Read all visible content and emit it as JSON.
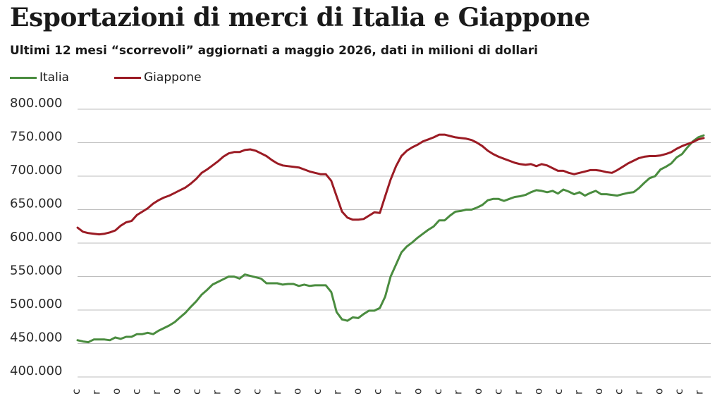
{
  "chart_data": {
    "type": "line",
    "title": "Esportazioni di merci di Italia e Giappone",
    "subtitle": "Ultimi 12 mesi “scorrevoli” aggiornati a maggio 2026, dati in milioni di dollari",
    "xlabel": "",
    "ylabel": "",
    "ylim": [
      400000,
      800000
    ],
    "yticks": [
      800000,
      750000,
      700000,
      650000,
      600000,
      550000,
      500000,
      450000,
      400000
    ],
    "ytick_labels": [
      "800.000",
      "750.000",
      "700.000",
      "650.000",
      "600.000",
      "550.000",
      "500.000",
      "450.000",
      "400.000"
    ],
    "grid": true,
    "legend_position": "top-left",
    "xtick_labels": [
      "c",
      "r",
      "o",
      "c",
      "r",
      "o",
      "c",
      "r",
      "o",
      "c",
      "r",
      "o",
      "c",
      "r",
      "o",
      "c",
      "r",
      "o",
      "c",
      "r",
      "o",
      "c",
      "r",
      "o",
      "c",
      "r",
      "o",
      "c",
      "r",
      "o",
      "c",
      "r"
    ],
    "series": [
      {
        "name": "Italia",
        "color": "#4a8c3f",
        "values": [
          455000,
          453000,
          452000,
          456000,
          456000,
          456000,
          455000,
          459000,
          457000,
          460000,
          460000,
          464000,
          464000,
          466000,
          464000,
          469000,
          473000,
          477000,
          482000,
          489000,
          496000,
          505000,
          513000,
          523000,
          530000,
          538000,
          542000,
          546000,
          550000,
          550000,
          547000,
          553000,
          551000,
          549000,
          547000,
          540000,
          540000,
          540000,
          538000,
          539000,
          539000,
          536000,
          538000,
          536000,
          537000,
          537000,
          537000,
          527000,
          497000,
          486000,
          484000,
          489000,
          488000,
          494000,
          499000,
          499000,
          503000,
          520000,
          550000,
          568000,
          586000,
          595000,
          601000,
          608000,
          614000,
          620000,
          625000,
          634000,
          634000,
          641000,
          647000,
          648000,
          650000,
          650000,
          653000,
          657000,
          664000,
          666000,
          666000,
          663000,
          666000,
          669000,
          670000,
          672000,
          676000,
          679000,
          678000,
          676000,
          678000,
          674000,
          680000,
          677000,
          673000,
          676000,
          671000,
          675000,
          678000,
          673000,
          673000,
          672000,
          671000,
          673000,
          675000,
          676000,
          682000,
          690000,
          697000,
          700000,
          710000,
          714000,
          719000,
          728000,
          733000,
          743000,
          752000,
          758000,
          761000
        ]
      },
      {
        "name": "Giappone",
        "color": "#9b1b24",
        "values": [
          623000,
          617000,
          615000,
          614000,
          613000,
          614000,
          616000,
          619000,
          626000,
          631000,
          633000,
          642000,
          647000,
          652000,
          659000,
          664000,
          668000,
          671000,
          675000,
          679000,
          683000,
          689000,
          696000,
          705000,
          710000,
          716000,
          722000,
          729000,
          734000,
          736000,
          736000,
          739000,
          740000,
          738000,
          734000,
          730000,
          724000,
          719000,
          716000,
          715000,
          714000,
          713000,
          710000,
          707000,
          705000,
          703000,
          703000,
          693000,
          670000,
          647000,
          638000,
          635000,
          635000,
          636000,
          641000,
          646000,
          645000,
          670000,
          695000,
          715000,
          730000,
          738000,
          743000,
          747000,
          752000,
          755000,
          758000,
          762000,
          762000,
          760000,
          758000,
          757000,
          756000,
          754000,
          750000,
          745000,
          738000,
          733000,
          729000,
          726000,
          723000,
          720000,
          718000,
          717000,
          718000,
          715000,
          718000,
          716000,
          712000,
          708000,
          708000,
          705000,
          703000,
          705000,
          707000,
          709000,
          709000,
          708000,
          706000,
          705000,
          709000,
          714000,
          719000,
          723000,
          727000,
          729000,
          730000,
          730000,
          731000,
          733000,
          736000,
          741000,
          745000,
          748000,
          751000,
          755000,
          757000
        ]
      }
    ]
  }
}
